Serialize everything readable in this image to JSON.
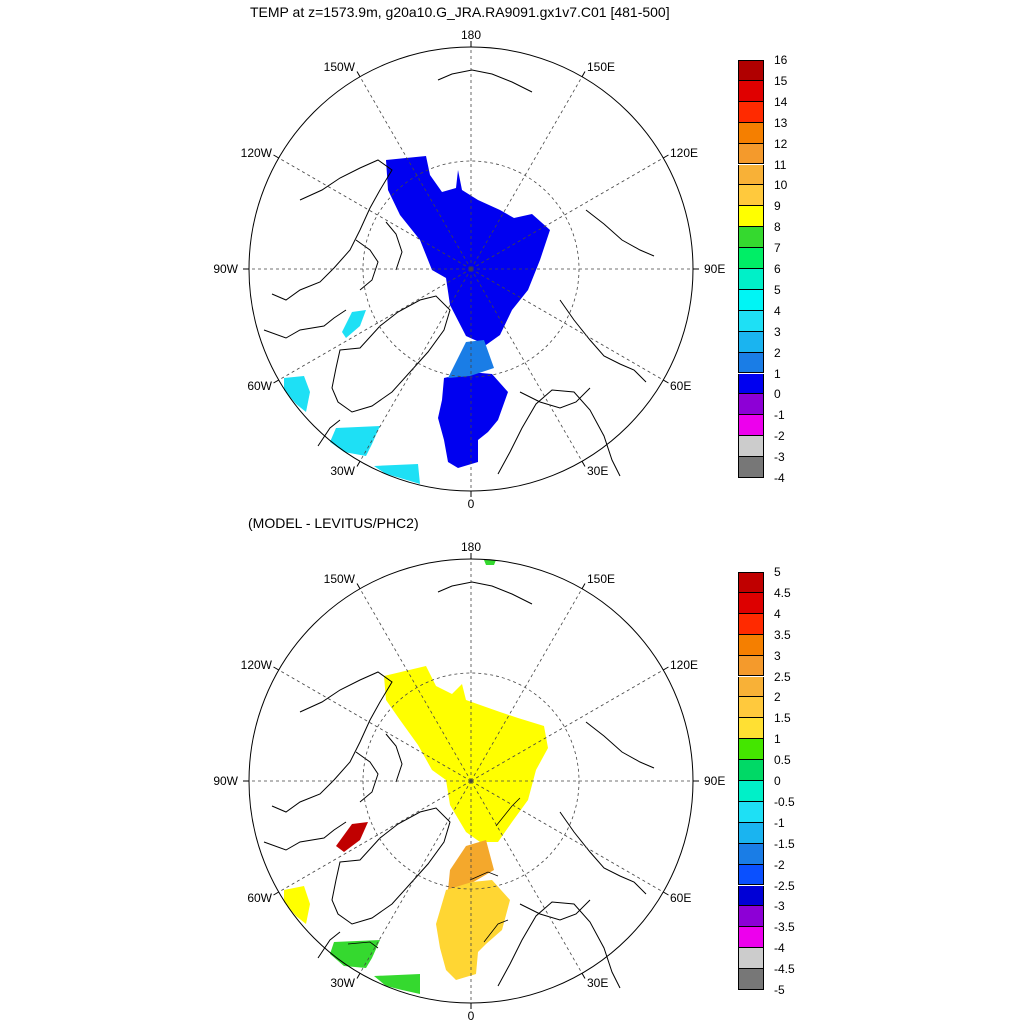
{
  "panels": [
    {
      "title": "TEMP at z=1573.9m, g20a10.G_JRA.RA9091.gx1v7.C01 [481-500]",
      "lon_labels": {
        "top": "180",
        "bottom": "0",
        "left": "90W",
        "right": "90E",
        "upper_left_150": "150W",
        "upper_right_150": "150E",
        "upper_left_120": "120W",
        "upper_right_120": "120E",
        "lower_left_60": "60W",
        "lower_right_60": "60E",
        "lower_left_30": "30W",
        "lower_right_30": "30E"
      },
      "legend": {
        "labels": [
          "16",
          "15",
          "14",
          "13",
          "12",
          "11",
          "10",
          "9",
          "8",
          "7",
          "6",
          "5",
          "4",
          "3",
          "2",
          "1",
          "0",
          "-1",
          "-2",
          "-3",
          "-4"
        ],
        "colors": [
          "#b00000",
          "#e00000",
          "#ff2a00",
          "#f57f00",
          "#f49a2c",
          "#f8b137",
          "#ffc93d",
          "#ffff00",
          "#35d92f",
          "#00ee66",
          "#00f0c8",
          "#00f5f5",
          "#1ee0f5",
          "#1ab4f0",
          "#1a7de6",
          "#0000f0",
          "#8d00d6",
          "#ed00ed",
          "#cccccc",
          "#777777"
        ]
      }
    },
    {
      "title": "(MODEL - LEVITUS/PHC2)",
      "lon_labels": {
        "top": "180",
        "bottom": "0",
        "left": "90W",
        "right": "90E",
        "upper_left_150": "150W",
        "upper_right_150": "150E",
        "upper_left_120": "120W",
        "upper_right_120": "120E",
        "lower_left_60": "60W",
        "lower_right_60": "60E",
        "lower_left_30": "30W",
        "lower_right_30": "30E"
      },
      "legend": {
        "labels": [
          "5",
          "4.5",
          "4",
          "3.5",
          "3",
          "2.5",
          "2",
          "1.5",
          "1",
          "0.5",
          "0",
          "-0.5",
          "-1",
          "-1.5",
          "-2",
          "-2.5",
          "-3",
          "-3.5",
          "-4",
          "-4.5",
          "-5"
        ],
        "colors": [
          "#c00000",
          "#dd0000",
          "#ff2a00",
          "#f57f00",
          "#f49a2c",
          "#f8b137",
          "#ffc93d",
          "#ffe033",
          "#44e600",
          "#00d966",
          "#00f0c8",
          "#1ee0f5",
          "#1ab4f0",
          "#1a7de6",
          "#0a50ff",
          "#0000d6",
          "#8d00d6",
          "#ed00ed",
          "#cccccc",
          "#777777"
        ]
      }
    }
  ],
  "field_colors": {
    "top_main": "#0000f0",
    "top_strait": "#1a7de6",
    "top_patches": "#1ee0f5",
    "bot_main": "#ffff00",
    "bot_atlantic": "#ffd633",
    "bot_strait": "#f4a82c",
    "bot_baffin": "#c00000",
    "bot_sw": "#35d92f"
  }
}
